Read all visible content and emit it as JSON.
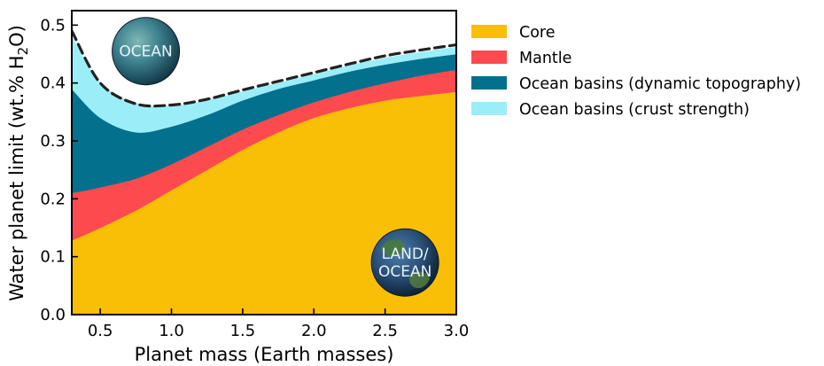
{
  "chart_data": {
    "type": "area",
    "xlabel": "Planet mass (Earth masses)",
    "ylabel_main": "Water planet limit (wt.% H",
    "ylabel_sub": "2",
    "ylabel_end": "O)",
    "xlim": [
      0.3,
      3.0
    ],
    "ylim": [
      0.0,
      0.525
    ],
    "xticks": [
      0.5,
      1.0,
      1.5,
      2.0,
      2.5,
      3.0
    ],
    "xtick_labels": [
      "0.5",
      "1.0",
      "1.5",
      "2.0",
      "2.5",
      "3.0"
    ],
    "yticks": [
      0.0,
      0.1,
      0.2,
      0.3,
      0.4,
      0.5
    ],
    "ytick_labels": [
      "0.0",
      "0.1",
      "0.2",
      "0.3",
      "0.4",
      "0.5"
    ],
    "stacked": true,
    "x": [
      0.3,
      0.5,
      0.75,
      1.0,
      1.25,
      1.5,
      1.75,
      2.0,
      2.25,
      2.5,
      2.75,
      3.0
    ],
    "series": [
      {
        "name": "Core",
        "color": "#f9be06",
        "cumulative_top": [
          0.128,
          0.15,
          0.18,
          0.215,
          0.25,
          0.285,
          0.315,
          0.34,
          0.357,
          0.37,
          0.378,
          0.385
        ]
      },
      {
        "name": "Mantle",
        "color": "#fd4a4f",
        "cumulative_top": [
          0.21,
          0.22,
          0.235,
          0.26,
          0.29,
          0.32,
          0.345,
          0.367,
          0.385,
          0.4,
          0.413,
          0.423
        ]
      },
      {
        "name": "Ocean basins (dynamic topography)",
        "color": "#03708d",
        "cumulative_top": [
          0.39,
          0.34,
          0.315,
          0.325,
          0.345,
          0.37,
          0.39,
          0.405,
          0.42,
          0.432,
          0.442,
          0.45
        ]
      },
      {
        "name": "Ocean basins (crust strength)",
        "color": "#9beef7",
        "cumulative_top": [
          0.48,
          0.4,
          0.365,
          0.36,
          0.37,
          0.385,
          0.4,
          0.415,
          0.43,
          0.443,
          0.453,
          0.462
        ]
      }
    ],
    "dashed_boundary": {
      "color": "#222222",
      "y": [
        0.49,
        0.4,
        0.364,
        0.362,
        0.372,
        0.388,
        0.403,
        0.418,
        0.433,
        0.447,
        0.457,
        0.466
      ]
    },
    "legend_placement": "outside-right",
    "grid": false,
    "annotations": [
      {
        "name": "ocean-planet",
        "lines": [
          "OCEAN"
        ],
        "x": 0.82,
        "y": 0.455
      },
      {
        "name": "land-ocean-planet",
        "lines": [
          "LAND/",
          "OCEAN"
        ],
        "x": 2.64,
        "y": 0.09
      }
    ]
  }
}
